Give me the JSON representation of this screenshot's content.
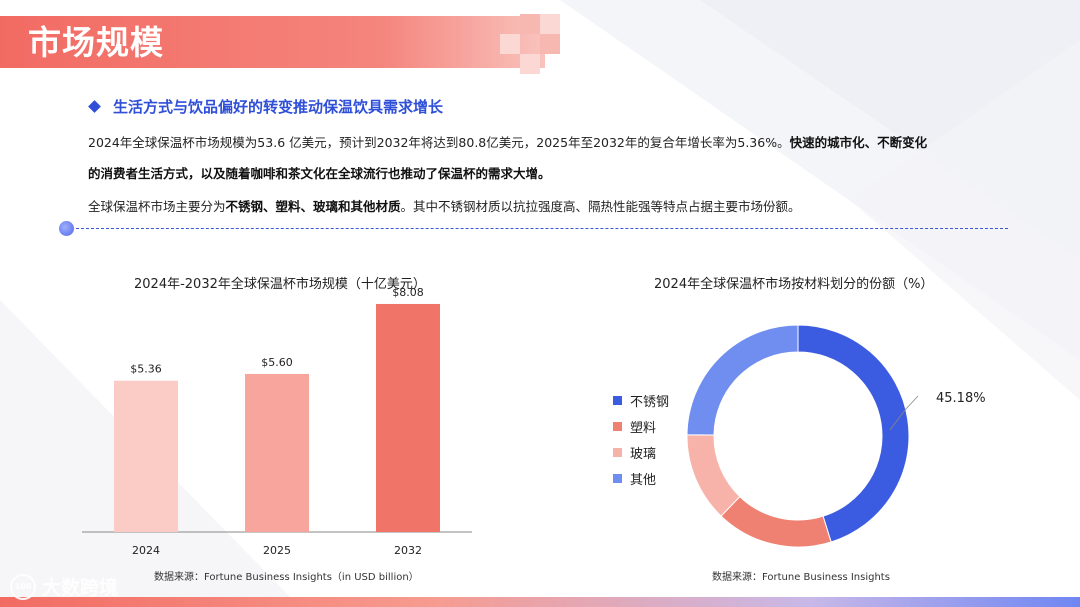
{
  "page": {
    "title": "市场规模",
    "subheading": "生活方式与饮品偏好的转变推动保温饮具需求增长",
    "para1_normal": "2024年全球保温杯市场规模为53.6 亿美元，预计到2032年将达到80.8亿美元，2025年至2032年的复合年增长率为5.36%。",
    "para1_bold": "快速的城市化、不断变化",
    "para2_bold": "的消费者生活方式，以及随着咖啡和茶文化在全球流行也推动了保温杯的需求大增。",
    "para3_a": "全球保温杯市场主要分为",
    "para3_bold": "不锈钢、塑料、玻璃和其他材质",
    "para3_b": "。其中不锈钢材质以抗拉强度高、隔热性能强等特点占据主要市场份额。",
    "logo_text": "大数跨境",
    "logo_mark": "100"
  },
  "colors": {
    "accent_blue": "#2f4fd8",
    "title_red": "#f26b63",
    "bar_2024": "#fbcbc6",
    "bar_2025": "#f7a59d",
    "bar_2032": "#f07468",
    "stainless": "#3b5be0",
    "plastic": "#ef8172",
    "glass": "#f7b3aa",
    "other": "#6f8ef0"
  },
  "chart_data": [
    {
      "type": "bar",
      "title": "2024年-2032年全球保温杯市场规模（十亿美元）",
      "categories": [
        "2024",
        "2025",
        "2032"
      ],
      "values": [
        5.36,
        5.6,
        8.08
      ],
      "data_labels": [
        "$5.36",
        "$5.60",
        "$8.08"
      ],
      "ylim": [
        0,
        9.0
      ],
      "grid": false,
      "source": "数据来源：Fortune Business Insights（in USD billion）"
    },
    {
      "type": "pie",
      "subtype": "donut",
      "title": "2024年全球保温杯市场按材料划分的份额（%）",
      "categories": [
        "不锈钢",
        "塑料",
        "玻璃",
        "其他"
      ],
      "values": [
        45.18,
        17.0,
        13.0,
        24.82
      ],
      "data_labels": [
        "45.18%",
        "",
        "",
        ""
      ],
      "legend_position": "left",
      "source": "数据来源：Fortune Business Insights"
    }
  ]
}
